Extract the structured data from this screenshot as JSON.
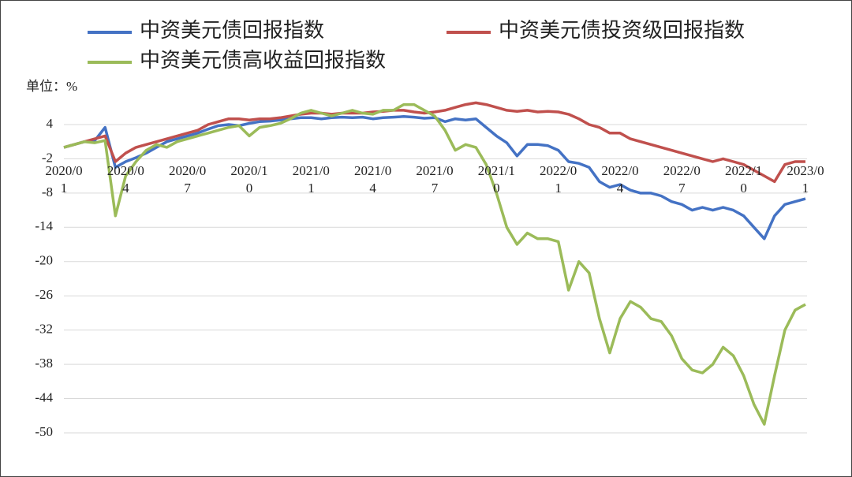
{
  "chart_data": {
    "type": "line",
    "y_label": "单位：%",
    "categories": [
      "2020/01",
      null,
      null,
      null,
      null,
      null,
      "2020/04",
      null,
      null,
      null,
      null,
      null,
      "2020/07",
      null,
      null,
      null,
      null,
      null,
      "2020/10",
      null,
      null,
      null,
      null,
      null,
      "2021/01",
      null,
      null,
      null,
      null,
      null,
      "2021/04",
      null,
      null,
      null,
      null,
      null,
      "2021/07",
      null,
      null,
      null,
      null,
      null,
      "2021/10",
      null,
      null,
      null,
      null,
      null,
      "2022/01",
      null,
      null,
      null,
      null,
      null,
      "2022/04",
      null,
      null,
      null,
      null,
      null,
      "2022/07",
      null,
      null,
      null,
      null,
      null,
      "2022/10",
      null,
      null,
      null,
      null,
      null,
      "2023/01"
    ],
    "series": [
      {
        "name": "中资美元债回报指数",
        "color": "#4472c4",
        "values": [
          0,
          0.5,
          1,
          1.2,
          3.5,
          -3.5,
          -2.5,
          -1.8,
          -1,
          0,
          1,
          1.5,
          2,
          2.5,
          3.2,
          3.8,
          4,
          3.8,
          4.2,
          4.5,
          4.6,
          4.8,
          5,
          5.2,
          5.2,
          5,
          5.2,
          5.3,
          5.2,
          5.3,
          5,
          5.2,
          5.3,
          5.4,
          5.3,
          5.1,
          5.2,
          4.5,
          5,
          4.8,
          5,
          3.5,
          2,
          0.8,
          -1.5,
          0.5,
          0.5,
          0.3,
          -0.5,
          -2.5,
          -2.8,
          -3.5,
          -6,
          -7,
          -6.5,
          -7.5,
          -8,
          -8,
          -8.5,
          -9.5,
          -10,
          -11,
          -10.5,
          -11,
          -10.5,
          -11,
          -12,
          -14,
          -16,
          -12,
          -10,
          -9.5,
          -9
        ]
      },
      {
        "name": "中资美元债投资级回报指数",
        "color": "#c0504d",
        "values": [
          0,
          0.5,
          1,
          1.5,
          2,
          -2.5,
          -1,
          0,
          0.5,
          1,
          1.5,
          2,
          2.5,
          3,
          4,
          4.5,
          5,
          5,
          4.8,
          5,
          5,
          5.2,
          5.5,
          5.8,
          6,
          6,
          5.8,
          6,
          6,
          6,
          6.2,
          6.3,
          6.5,
          6.5,
          6.2,
          6,
          6.2,
          6.5,
          7,
          7.5,
          7.8,
          7.5,
          7,
          6.5,
          6.3,
          6.5,
          6.2,
          6.3,
          6.2,
          5.8,
          5,
          4,
          3.5,
          2.5,
          2.5,
          1.5,
          1,
          0.5,
          0,
          -0.5,
          -1,
          -1.5,
          -2,
          -2.5,
          -2,
          -2.5,
          -3,
          -4,
          -5,
          -6,
          -3,
          -2.5,
          -2.5
        ]
      },
      {
        "name": "中资美元债高收益回报指数",
        "color": "#9bbb59",
        "values": [
          0,
          0.5,
          1,
          0.8,
          1.2,
          -12,
          -5,
          -2.5,
          -0.5,
          0.5,
          0,
          1,
          1.5,
          2,
          2.5,
          3,
          3.5,
          3.8,
          2,
          3.5,
          3.8,
          4.2,
          5,
          6,
          6.5,
          6,
          5.5,
          6,
          6.5,
          6,
          5.8,
          6.5,
          6.5,
          7.5,
          7.5,
          6.5,
          5.5,
          3,
          -0.5,
          0.5,
          0,
          -3,
          -8,
          -14,
          -17,
          -15,
          -16,
          -16,
          -16.5,
          -25,
          -20,
          -22,
          -30,
          -36,
          -30,
          -27,
          -28,
          -30,
          -30.5,
          -33,
          -37,
          -39,
          -39.5,
          -38,
          -35,
          -36.5,
          -40,
          -45,
          -48.5,
          -40,
          -32,
          -28.5,
          -27.5
        ]
      }
    ],
    "ylim": [
      -50,
      8
    ],
    "yticks": [
      4,
      -2,
      -8,
      -14,
      -20,
      -26,
      -32,
      -38,
      -44,
      -50
    ],
    "grid": true,
    "legend": "top"
  }
}
